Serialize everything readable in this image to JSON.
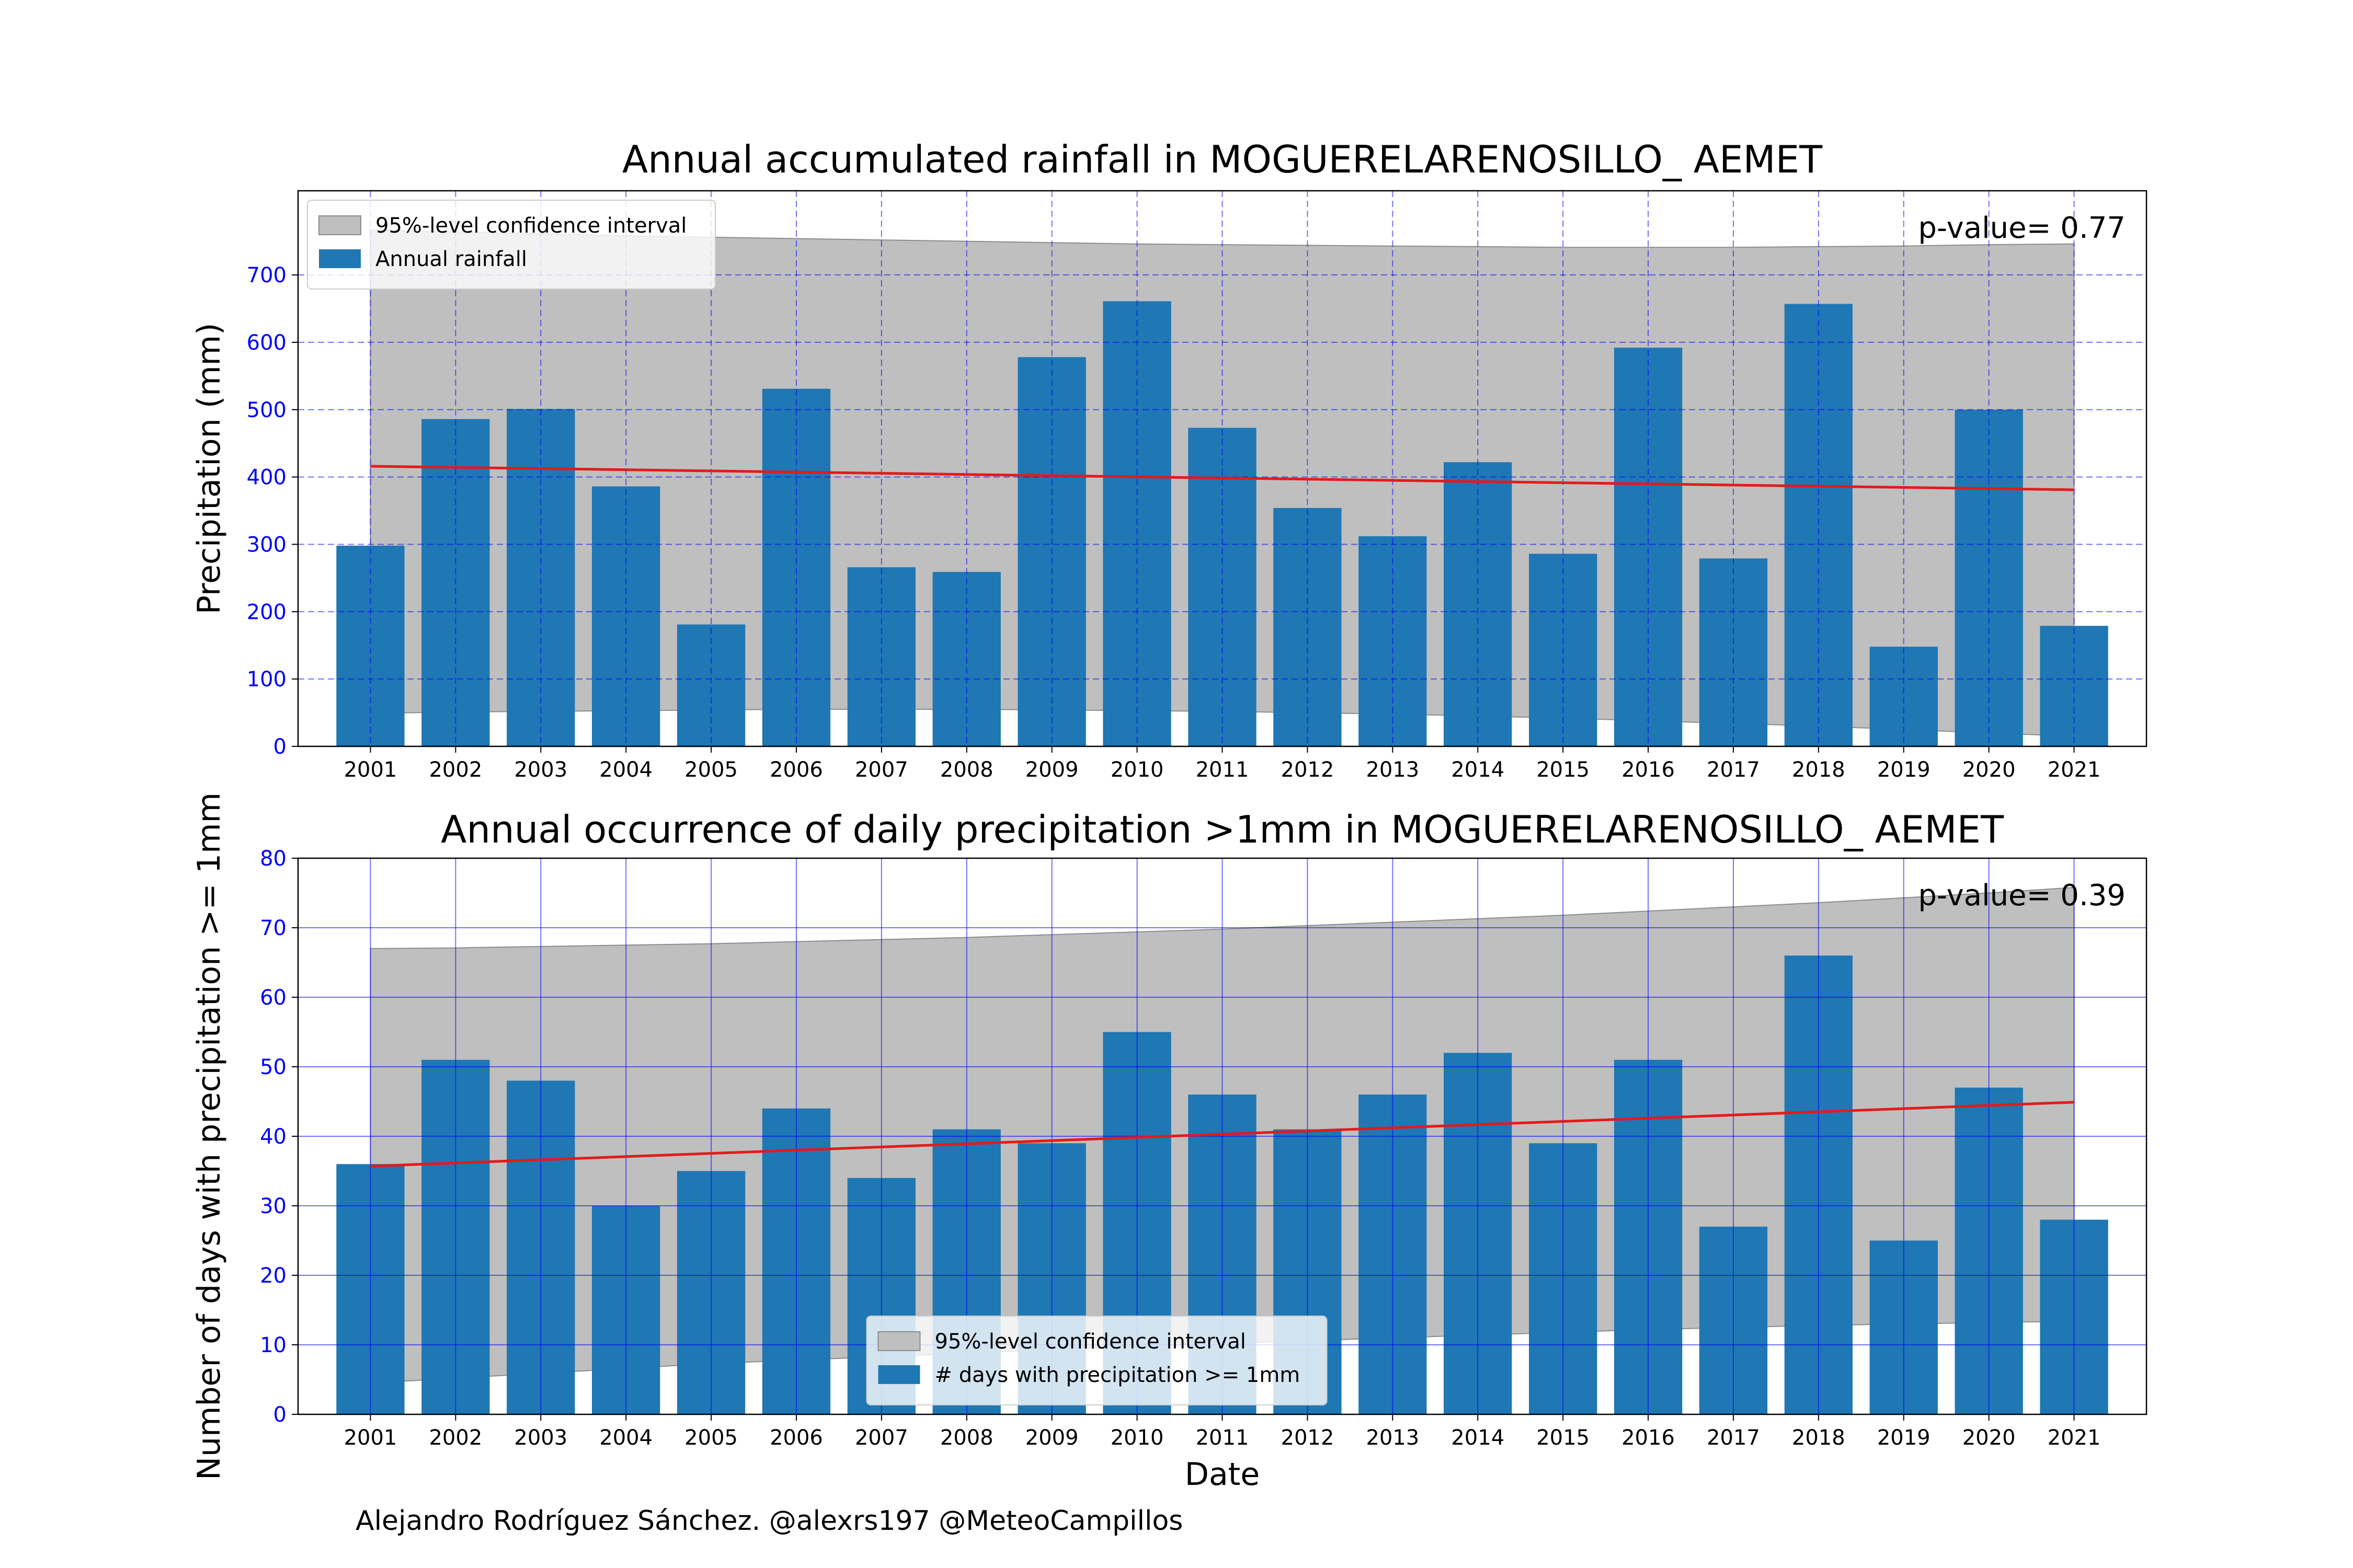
{
  "credit": "Alejandro Rodríguez Sánchez. @alexrs197 @MeteoCampillos",
  "colors": {
    "bar": "#1f77b4",
    "trend": "#e31a1c",
    "ci_fill": "#bfbfbf",
    "grid": "#0000ff",
    "ytick_label": "#0000ff"
  },
  "chart_data": [
    {
      "type": "bar",
      "title": "Annual accumulated rainfall in MOGUERELARENOSILLO_ AEMET",
      "xlabel": "",
      "ylabel": "Precipitation (mm)",
      "categories": [
        "2001",
        "2002",
        "2003",
        "2004",
        "2005",
        "2006",
        "2007",
        "2008",
        "2009",
        "2010",
        "2011",
        "2012",
        "2013",
        "2014",
        "2015",
        "2016",
        "2017",
        "2018",
        "2019",
        "2020",
        "2021"
      ],
      "series": [
        {
          "name": "Annual rainfall",
          "values": [
            298,
            486,
            501,
            386,
            181,
            531,
            266,
            259,
            578,
            661,
            473,
            354,
            312,
            422,
            286,
            592,
            279,
            657,
            148,
            500,
            179
          ]
        }
      ],
      "trend": {
        "start": 416,
        "end": 381
      },
      "confidence_interval": {
        "name": "95%-level confidence interval",
        "upper": [
          767,
          764,
          761,
          758,
          756,
          754,
          752,
          750,
          748,
          746,
          745,
          744,
          743,
          742,
          741,
          741,
          741,
          742,
          743,
          745,
          746
        ],
        "lower": [
          49,
          51,
          52,
          53,
          54,
          55,
          55,
          55,
          54,
          53,
          52,
          50,
          48,
          45,
          42,
          38,
          34,
          30,
          25,
          20,
          15
        ]
      },
      "annotation": "p-value= 0.77",
      "ylim": [
        0,
        825
      ],
      "yticks": [
        0,
        100,
        200,
        300,
        400,
        500,
        600,
        700
      ],
      "grid": true,
      "grid_style": "dashed",
      "legend_position": "upper left"
    },
    {
      "type": "bar",
      "title": "Annual occurrence of daily precipitation >1mm in MOGUERELARENOSILLO_ AEMET",
      "xlabel": "Date",
      "ylabel": "Number of days with precipitation >= 1mm",
      "categories": [
        "2001",
        "2002",
        "2003",
        "2004",
        "2005",
        "2006",
        "2007",
        "2008",
        "2009",
        "2010",
        "2011",
        "2012",
        "2013",
        "2014",
        "2015",
        "2016",
        "2017",
        "2018",
        "2019",
        "2020",
        "2021"
      ],
      "series": [
        {
          "name": "# days with precipitation >= 1mm",
          "values": [
            36,
            51,
            48,
            30,
            35,
            44,
            34,
            41,
            39,
            55,
            46,
            41,
            46,
            52,
            39,
            51,
            27,
            66,
            25,
            47,
            28
          ]
        }
      ],
      "trend": {
        "start": 35.7,
        "end": 44.9
      },
      "confidence_interval": {
        "name": "95%-level confidence interval",
        "upper": [
          67,
          67.1,
          67.3,
          67.5,
          67.7,
          68,
          68.3,
          68.6,
          69,
          69.4,
          69.8,
          70.3,
          70.8,
          71.3,
          71.8,
          72.4,
          73,
          73.6,
          74.3,
          75,
          75.8
        ],
        "lower": [
          4.5,
          5.2,
          5.9,
          6.6,
          7.3,
          7.8,
          8.3,
          8.8,
          9.3,
          9.8,
          10.2,
          10.6,
          11,
          11.4,
          11.8,
          12.2,
          12.5,
          12.8,
          13,
          13.2,
          13.4
        ]
      },
      "annotation": "p-value= 0.39",
      "ylim": [
        0,
        80
      ],
      "yticks": [
        0,
        10,
        20,
        30,
        40,
        50,
        60,
        70,
        80
      ],
      "grid": true,
      "grid_style": "solid",
      "legend_position": "lower center"
    }
  ]
}
